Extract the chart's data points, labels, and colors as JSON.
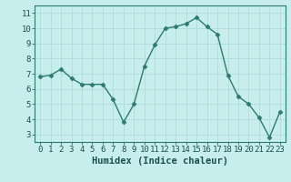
{
  "x": [
    0,
    1,
    2,
    3,
    4,
    5,
    6,
    7,
    8,
    9,
    10,
    11,
    12,
    13,
    14,
    15,
    16,
    17,
    18,
    19,
    20,
    21,
    22,
    23
  ],
  "y": [
    6.8,
    6.9,
    7.3,
    6.7,
    6.3,
    6.3,
    6.3,
    5.3,
    3.8,
    5.0,
    7.5,
    8.9,
    10.0,
    10.1,
    10.3,
    10.7,
    10.1,
    9.6,
    6.9,
    5.5,
    5.0,
    4.1,
    2.8,
    4.5
  ],
  "xlabel": "Humidex (Indice chaleur)",
  "line_color": "#2d7a70",
  "marker_color": "#2d7a70",
  "bg_color": "#c8eded",
  "grid_color": "#a8d8d8",
  "spine_color": "#2d7a70",
  "text_color": "#1a5050",
  "xlim": [
    -0.5,
    23.5
  ],
  "ylim": [
    2.5,
    11.5
  ],
  "yticks": [
    3,
    4,
    5,
    6,
    7,
    8,
    9,
    10,
    11
  ],
  "xticks": [
    0,
    1,
    2,
    3,
    4,
    5,
    6,
    7,
    8,
    9,
    10,
    11,
    12,
    13,
    14,
    15,
    16,
    17,
    18,
    19,
    20,
    21,
    22,
    23
  ],
  "xlabel_fontsize": 7.5,
  "tick_fontsize": 6.5
}
